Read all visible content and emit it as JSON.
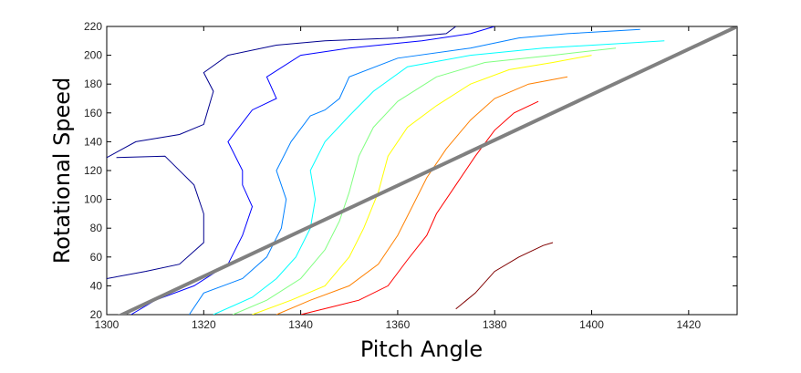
{
  "chart_data": {
    "type": "contour",
    "xlabel": "Pitch Angle",
    "ylabel": "Rotational Speed",
    "xlim": [
      1300,
      1430
    ],
    "ylim": [
      20,
      220
    ],
    "xticks": [
      1300,
      1320,
      1340,
      1360,
      1380,
      1400,
      1420
    ],
    "yticks": [
      20,
      40,
      60,
      80,
      100,
      120,
      140,
      160,
      180,
      200,
      220
    ],
    "grid": false,
    "legend": "none",
    "colormap": [
      "#00008f",
      "#0000ff",
      "#0080ff",
      "#00ffff",
      "#80ff80",
      "#ffff00",
      "#ff8000",
      "#ff0000",
      "#800000"
    ],
    "trend_line": {
      "color": "#808080",
      "points": [
        [
          1300,
          15
        ],
        [
          1430,
          220
        ]
      ]
    },
    "contours": [
      {
        "level": 1,
        "color": "#00008f",
        "points": [
          [
            1300,
            129
          ],
          [
            1306,
            140
          ],
          [
            1315,
            145
          ],
          [
            1320,
            152
          ],
          [
            1322,
            175
          ],
          [
            1320,
            188
          ],
          [
            1325,
            200
          ],
          [
            1335,
            207
          ],
          [
            1345,
            210
          ],
          [
            1360,
            212
          ],
          [
            1370,
            215
          ],
          [
            1372,
            220
          ]
        ]
      },
      {
        "level": 1,
        "color": "#00008f",
        "points": [
          [
            1300,
            45
          ],
          [
            1308,
            50
          ],
          [
            1315,
            55
          ],
          [
            1320,
            70
          ],
          [
            1320,
            90
          ],
          [
            1318,
            110
          ],
          [
            1312,
            130
          ],
          [
            1302,
            129
          ]
        ]
      },
      {
        "level": 2,
        "color": "#0000ff",
        "points": [
          [
            1305,
            20
          ],
          [
            1310,
            30
          ],
          [
            1318,
            40
          ],
          [
            1325,
            55
          ],
          [
            1328,
            75
          ],
          [
            1330,
            95
          ],
          [
            1328,
            110
          ],
          [
            1328,
            120
          ],
          [
            1325,
            140
          ],
          [
            1330,
            162
          ],
          [
            1335,
            170
          ],
          [
            1333,
            185
          ],
          [
            1340,
            200
          ],
          [
            1350,
            205
          ],
          [
            1365,
            210
          ],
          [
            1375,
            215
          ],
          [
            1380,
            220
          ]
        ]
      },
      {
        "level": 3,
        "color": "#0080ff",
        "points": [
          [
            1317,
            20
          ],
          [
            1320,
            35
          ],
          [
            1328,
            45
          ],
          [
            1333,
            60
          ],
          [
            1336,
            80
          ],
          [
            1337,
            100
          ],
          [
            1335,
            120
          ],
          [
            1338,
            140
          ],
          [
            1342,
            158
          ],
          [
            1345,
            162
          ],
          [
            1348,
            170
          ],
          [
            1350,
            185
          ],
          [
            1360,
            198
          ],
          [
            1375,
            205
          ],
          [
            1385,
            212
          ],
          [
            1395,
            215
          ],
          [
            1410,
            218
          ]
        ]
      },
      {
        "level": 4,
        "color": "#00ffff",
        "points": [
          [
            1322,
            20
          ],
          [
            1330,
            32
          ],
          [
            1335,
            45
          ],
          [
            1339,
            60
          ],
          [
            1342,
            80
          ],
          [
            1343,
            100
          ],
          [
            1342,
            120
          ],
          [
            1345,
            140
          ],
          [
            1350,
            158
          ],
          [
            1355,
            175
          ],
          [
            1362,
            192
          ],
          [
            1375,
            200
          ],
          [
            1390,
            205
          ],
          [
            1405,
            208
          ],
          [
            1415,
            210
          ]
        ]
      },
      {
        "level": 5,
        "color": "#80ff80",
        "points": [
          [
            1326,
            20
          ],
          [
            1333,
            30
          ],
          [
            1340,
            45
          ],
          [
            1345,
            65
          ],
          [
            1348,
            85
          ],
          [
            1350,
            105
          ],
          [
            1352,
            130
          ],
          [
            1355,
            150
          ],
          [
            1360,
            168
          ],
          [
            1368,
            185
          ],
          [
            1378,
            195
          ],
          [
            1392,
            200
          ],
          [
            1405,
            205
          ]
        ]
      },
      {
        "level": 6,
        "color": "#ffff00",
        "points": [
          [
            1330,
            20
          ],
          [
            1338,
            30
          ],
          [
            1345,
            40
          ],
          [
            1350,
            60
          ],
          [
            1353,
            80
          ],
          [
            1356,
            105
          ],
          [
            1358,
            130
          ],
          [
            1362,
            150
          ],
          [
            1368,
            165
          ],
          [
            1375,
            180
          ],
          [
            1383,
            190
          ],
          [
            1392,
            195
          ],
          [
            1400,
            200
          ]
        ]
      },
      {
        "level": 7,
        "color": "#ff8000",
        "points": [
          [
            1335,
            20
          ],
          [
            1342,
            30
          ],
          [
            1350,
            40
          ],
          [
            1356,
            55
          ],
          [
            1360,
            75
          ],
          [
            1363,
            95
          ],
          [
            1366,
            115
          ],
          [
            1370,
            135
          ],
          [
            1375,
            155
          ],
          [
            1380,
            170
          ],
          [
            1387,
            180
          ],
          [
            1395,
            185
          ]
        ]
      },
      {
        "level": 8,
        "color": "#ff0000",
        "points": [
          [
            1340,
            20
          ],
          [
            1346,
            25
          ],
          [
            1352,
            30
          ],
          [
            1358,
            40
          ],
          [
            1362,
            58
          ],
          [
            1366,
            75
          ],
          [
            1368,
            90
          ],
          [
            1372,
            110
          ],
          [
            1376,
            130
          ],
          [
            1380,
            148
          ],
          [
            1384,
            160
          ],
          [
            1389,
            168
          ]
        ]
      },
      {
        "level": 9,
        "color": "#800000",
        "points": [
          [
            1372,
            24
          ],
          [
            1376,
            35
          ],
          [
            1380,
            50
          ],
          [
            1385,
            60
          ],
          [
            1390,
            68
          ],
          [
            1392,
            70
          ]
        ]
      }
    ]
  }
}
